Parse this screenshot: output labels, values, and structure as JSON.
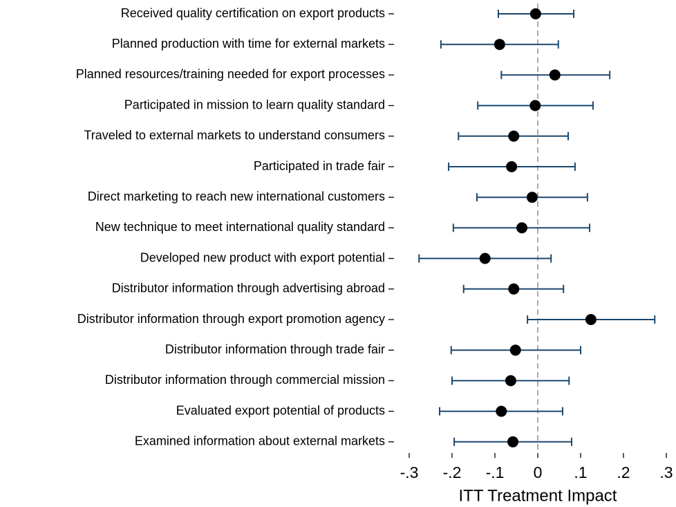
{
  "chart_data": {
    "type": "coefplot",
    "x_label": "ITT Treatment Impact",
    "categories": [
      "Received quality certification on export products",
      "Planned production with time for external markets",
      "Planned resources/training needed for export processes",
      "Participated in mission to learn quality standard",
      "Traveled to external markets to understand consumers",
      "Participated in trade fair",
      "Direct marketing to reach new international customers",
      "New technique to meet international quality standard",
      "Developed new product with export potential",
      "Distributor information through advertising abroad",
      "Distributor information through export promotion agency",
      "Distributor information through trade fair",
      "Distributor information through commercial mission",
      "Evaluated export potential of products",
      "Examined information about external markets"
    ],
    "series": [
      {
        "color": "#000000",
        "whisker_color": "#1a476f",
        "values": [
          -0.005,
          -0.089,
          0.04,
          -0.006,
          -0.056,
          -0.061,
          -0.013,
          -0.037,
          -0.123,
          -0.056,
          0.124,
          -0.052,
          -0.063,
          -0.085,
          -0.058
        ],
        "lower": [
          -0.092,
          -0.226,
          -0.085,
          -0.14,
          -0.185,
          -0.208,
          -0.142,
          -0.197,
          -0.277,
          -0.173,
          -0.024,
          -0.202,
          -0.2,
          -0.229,
          -0.195
        ],
        "upper": [
          0.084,
          0.048,
          0.168,
          0.129,
          0.071,
          0.087,
          0.116,
          0.121,
          0.031,
          0.06,
          0.273,
          0.1,
          0.073,
          0.058,
          0.079
        ]
      }
    ],
    "refline": 0,
    "xlim": [
      -0.3,
      0.3
    ],
    "xticks": [
      {
        "value": -0.3,
        "label": "-.3"
      },
      {
        "value": -0.2,
        "label": "-.2"
      },
      {
        "value": -0.1,
        "label": "-.1"
      },
      0,
      {
        "value": 0.1,
        "label": ".1"
      },
      {
        "value": 0.2,
        "label": ".2"
      },
      {
        "value": 0.3,
        "label": ".3"
      }
    ]
  }
}
